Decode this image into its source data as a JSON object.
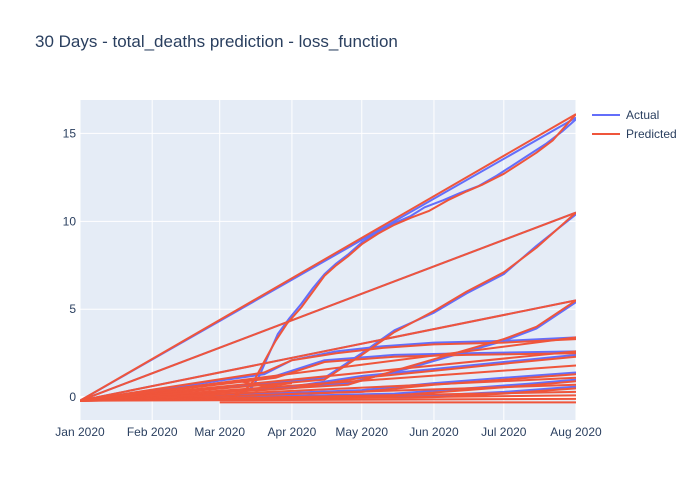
{
  "chart_data": {
    "type": "line",
    "title": "30 Days - total_deaths prediction - loss_function",
    "xlabel": "",
    "ylabel": "",
    "x_ticks": [
      "Jan 2020",
      "Feb 2020",
      "Mar 2020",
      "Apr 2020",
      "May 2020",
      "Jun 2020",
      "Jul 2020",
      "Aug 2020"
    ],
    "y_ticks": [
      0,
      5,
      10,
      15
    ],
    "xlim": [
      "2020-01-01",
      "2020-08-01"
    ],
    "ylim": [
      -1.3,
      16.9
    ],
    "grid": true,
    "legend_position": "top-right",
    "series": [
      {
        "name": "Actual",
        "color": "#636efa",
        "lines": [
          [
            [
              "2020-01-01",
              -0.2
            ],
            [
              "2020-03-10",
              0.1
            ],
            [
              "2020-03-15",
              0.6
            ],
            [
              "2020-03-18",
              1.2
            ],
            [
              "2020-03-22",
              2.4
            ],
            [
              "2020-03-26",
              3.6
            ],
            [
              "2020-03-31",
              4.5
            ],
            [
              "2020-04-05",
              5.3
            ],
            [
              "2020-04-10",
              6.2
            ],
            [
              "2020-04-15",
              7.0
            ],
            [
              "2020-04-20",
              7.6
            ],
            [
              "2020-04-25",
              8.1
            ],
            [
              "2020-05-01",
              8.8
            ],
            [
              "2020-05-08",
              9.4
            ],
            [
              "2020-05-15",
              9.9
            ],
            [
              "2020-05-22",
              10.3
            ],
            [
              "2020-05-28",
              10.8
            ],
            [
              "2020-06-05",
              11.2
            ],
            [
              "2020-06-12",
              11.6
            ],
            [
              "2020-06-20",
              12.0
            ],
            [
              "2020-06-28",
              12.6
            ],
            [
              "2020-07-05",
              13.2
            ],
            [
              "2020-07-12",
              13.8
            ],
            [
              "2020-07-19",
              14.4
            ],
            [
              "2020-07-26",
              15.1
            ],
            [
              "2020-08-01",
              15.8
            ]
          ],
          [
            [
              "2020-01-01",
              -0.2
            ],
            [
              "2020-08-01",
              15.9
            ]
          ],
          [
            [
              "2020-01-01",
              -0.2
            ],
            [
              "2020-04-15",
              1.1
            ],
            [
              "2020-05-01",
              2.5
            ],
            [
              "2020-05-15",
              3.8
            ],
            [
              "2020-06-01",
              4.8
            ],
            [
              "2020-06-15",
              5.9
            ],
            [
              "2020-07-01",
              7.0
            ],
            [
              "2020-07-15",
              8.6
            ],
            [
              "2020-08-01",
              10.4
            ]
          ],
          [
            [
              "2020-01-01",
              -0.2
            ],
            [
              "2020-08-01",
              10.5
            ]
          ],
          [
            [
              "2020-01-01",
              -0.2
            ],
            [
              "2020-04-25",
              0.8
            ],
            [
              "2020-05-20",
              1.6
            ],
            [
              "2020-06-10",
              2.4
            ],
            [
              "2020-07-01",
              3.2
            ],
            [
              "2020-07-15",
              3.9
            ],
            [
              "2020-08-01",
              5.4
            ]
          ],
          [
            [
              "2020-01-01",
              -0.2
            ],
            [
              "2020-08-01",
              5.5
            ]
          ],
          [
            [
              "2020-01-01",
              -0.2
            ],
            [
              "2020-03-20",
              1.3
            ],
            [
              "2020-04-01",
              2.1
            ],
            [
              "2020-04-20",
              2.6
            ],
            [
              "2020-05-10",
              2.9
            ],
            [
              "2020-06-01",
              3.1
            ],
            [
              "2020-07-01",
              3.2
            ],
            [
              "2020-08-01",
              3.4
            ]
          ],
          [
            [
              "2020-01-01",
              -0.2
            ],
            [
              "2020-03-25",
              1.2
            ],
            [
              "2020-04-15",
              2.1
            ],
            [
              "2020-05-15",
              2.4
            ],
            [
              "2020-06-15",
              2.5
            ],
            [
              "2020-08-01",
              2.6
            ]
          ],
          [
            [
              "2020-01-01",
              -0.2
            ],
            [
              "2020-04-01",
              0.6
            ],
            [
              "2020-05-01",
              1.2
            ],
            [
              "2020-06-01",
              1.6
            ],
            [
              "2020-07-01",
              2.0
            ],
            [
              "2020-08-01",
              2.4
            ]
          ],
          [
            [
              "2020-01-01",
              -0.2
            ],
            [
              "2020-05-01",
              0.4
            ],
            [
              "2020-06-01",
              0.8
            ],
            [
              "2020-07-01",
              1.1
            ],
            [
              "2020-08-01",
              1.4
            ]
          ],
          [
            [
              "2020-01-01",
              -0.2
            ],
            [
              "2020-05-15",
              0.2
            ],
            [
              "2020-06-15",
              0.5
            ],
            [
              "2020-07-15",
              0.8
            ],
            [
              "2020-08-01",
              1.0
            ]
          ],
          [
            [
              "2020-01-01",
              -0.2
            ],
            [
              "2020-06-01",
              0.1
            ],
            [
              "2020-07-01",
              0.3
            ],
            [
              "2020-08-01",
              0.6
            ]
          ]
        ]
      },
      {
        "name": "Predicted",
        "color": "#ef553b",
        "lines": [
          [
            [
              "2020-01-01",
              -0.2
            ],
            [
              "2020-03-05",
              -0.1
            ],
            [
              "2020-03-12",
              0.4
            ],
            [
              "2020-03-16",
              1.0
            ],
            [
              "2020-03-20",
              2.0
            ],
            [
              "2020-03-25",
              3.2
            ],
            [
              "2020-03-30",
              4.2
            ],
            [
              "2020-04-05",
              5.1
            ],
            [
              "2020-04-10",
              6.0
            ],
            [
              "2020-04-15",
              6.9
            ],
            [
              "2020-04-20",
              7.5
            ],
            [
              "2020-04-25",
              8.0
            ],
            [
              "2020-05-01",
              8.7
            ],
            [
              "2020-05-08",
              9.3
            ],
            [
              "2020-05-15",
              9.8
            ],
            [
              "2020-05-22",
              10.2
            ],
            [
              "2020-05-30",
              10.6
            ],
            [
              "2020-06-07",
              11.2
            ],
            [
              "2020-06-15",
              11.7
            ],
            [
              "2020-06-22",
              12.1
            ],
            [
              "2020-07-01",
              12.7
            ],
            [
              "2020-07-08",
              13.3
            ],
            [
              "2020-07-15",
              13.9
            ],
            [
              "2020-07-22",
              14.6
            ],
            [
              "2020-08-01",
              16.1
            ]
          ],
          [
            [
              "2020-01-01",
              -0.2
            ],
            [
              "2020-08-01",
              16.1
            ]
          ],
          [
            [
              "2020-01-01",
              -0.2
            ],
            [
              "2020-04-15",
              1.0
            ],
            [
              "2020-05-01",
              2.4
            ],
            [
              "2020-05-15",
              3.7
            ],
            [
              "2020-06-01",
              4.9
            ],
            [
              "2020-06-15",
              6.0
            ],
            [
              "2020-07-01",
              7.1
            ],
            [
              "2020-07-15",
              8.5
            ],
            [
              "2020-08-01",
              10.5
            ]
          ],
          [
            [
              "2020-01-01",
              -0.2
            ],
            [
              "2020-08-01",
              10.5
            ]
          ],
          [
            [
              "2020-01-01",
              -0.2
            ],
            [
              "2020-04-25",
              0.7
            ],
            [
              "2020-05-20",
              1.7
            ],
            [
              "2020-06-10",
              2.5
            ],
            [
              "2020-07-01",
              3.3
            ],
            [
              "2020-07-15",
              4.0
            ],
            [
              "2020-08-01",
              5.5
            ]
          ],
          [
            [
              "2020-01-01",
              -0.2
            ],
            [
              "2020-08-01",
              5.5
            ]
          ],
          [
            [
              "2020-01-01",
              -0.2
            ],
            [
              "2020-08-01",
              3.4
            ]
          ],
          [
            [
              "2020-01-01",
              -0.2
            ],
            [
              "2020-03-20",
              1.4
            ],
            [
              "2020-04-01",
              2.1
            ],
            [
              "2020-04-20",
              2.5
            ],
            [
              "2020-05-10",
              2.8
            ],
            [
              "2020-06-01",
              3.0
            ],
            [
              "2020-07-01",
              3.1
            ],
            [
              "2020-08-01",
              3.3
            ]
          ],
          [
            [
              "2020-01-01",
              -0.2
            ],
            [
              "2020-08-01",
              2.6
            ]
          ],
          [
            [
              "2020-01-01",
              -0.2
            ],
            [
              "2020-03-25",
              1.1
            ],
            [
              "2020-04-15",
              2.0
            ],
            [
              "2020-05-15",
              2.3
            ],
            [
              "2020-06-15",
              2.4
            ],
            [
              "2020-08-01",
              2.5
            ]
          ],
          [
            [
              "2020-01-01",
              -0.2
            ],
            [
              "2020-04-01",
              0.5
            ],
            [
              "2020-05-01",
              1.1
            ],
            [
              "2020-06-01",
              1.5
            ],
            [
              "2020-07-01",
              1.9
            ],
            [
              "2020-08-01",
              2.3
            ]
          ],
          [
            [
              "2020-01-01",
              -0.2
            ],
            [
              "2020-08-01",
              1.8
            ]
          ],
          [
            [
              "2020-01-01",
              -0.2
            ],
            [
              "2020-05-01",
              0.3
            ],
            [
              "2020-06-01",
              0.7
            ],
            [
              "2020-07-01",
              1.0
            ],
            [
              "2020-08-01",
              1.3
            ]
          ],
          [
            [
              "2020-01-01",
              -0.2
            ],
            [
              "2020-08-01",
              1.1
            ]
          ],
          [
            [
              "2020-01-01",
              -0.2
            ],
            [
              "2020-05-15",
              0.1
            ],
            [
              "2020-06-15",
              0.4
            ],
            [
              "2020-07-15",
              0.7
            ],
            [
              "2020-08-01",
              0.9
            ]
          ],
          [
            [
              "2020-01-01",
              -0.2
            ],
            [
              "2020-08-01",
              0.7
            ]
          ],
          [
            [
              "2020-01-01",
              -0.2
            ],
            [
              "2020-06-01",
              0.0
            ],
            [
              "2020-07-01",
              0.2
            ],
            [
              "2020-08-01",
              0.5
            ]
          ],
          [
            [
              "2020-01-01",
              -0.2
            ],
            [
              "2020-08-01",
              0.3
            ]
          ],
          [
            [
              "2020-01-01",
              -0.2
            ],
            [
              "2020-08-01",
              0.1
            ]
          ],
          [
            [
              "2020-01-01",
              -0.2
            ],
            [
              "2020-08-01",
              -0.1
            ]
          ],
          [
            [
              "2020-01-01",
              -0.2
            ],
            [
              "2020-03-01",
              0.8
            ],
            [
              "2020-03-10",
              0.9
            ],
            [
              "2020-03-20",
              0.6
            ],
            [
              "2020-04-01",
              0.8
            ]
          ],
          [
            [
              "2020-03-01",
              -0.3
            ],
            [
              "2020-08-01",
              -0.3
            ]
          ]
        ]
      }
    ]
  }
}
